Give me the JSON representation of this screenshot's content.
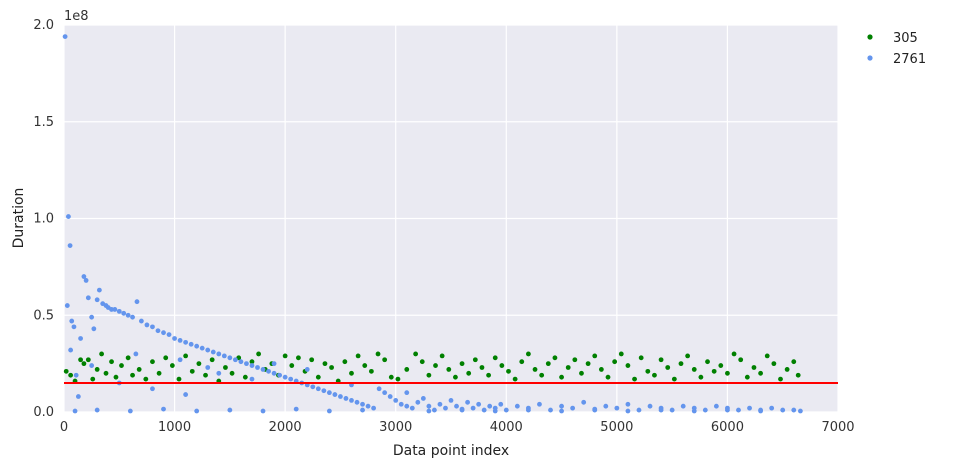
{
  "chart_data": {
    "type": "scatter",
    "xlabel": "Data point index",
    "ylabel": "Duration",
    "offset_label": "1e8",
    "xlim": [
      0,
      7000
    ],
    "ylim": [
      0,
      200000000
    ],
    "x_ticks": [
      0,
      1000,
      2000,
      3000,
      4000,
      5000,
      6000,
      7000
    ],
    "x_tick_labels": [
      "0",
      "1000",
      "2000",
      "3000",
      "4000",
      "5000",
      "6000",
      "7000"
    ],
    "y_ticks": [
      0,
      50000000,
      100000000,
      150000000,
      200000000
    ],
    "y_tick_labels": [
      "0.0",
      "0.5",
      "1.0",
      "1.5",
      "2.0"
    ],
    "grid": true,
    "legend_position": "outside-top-right",
    "threshold_line": {
      "y": 15000000,
      "color": "#ff0000"
    },
    "series": [
      {
        "name": "305",
        "color": "#008000",
        "points": [
          [
            20,
            21000000
          ],
          [
            60,
            19000000
          ],
          [
            100,
            16000000
          ],
          [
            150,
            27000000
          ],
          [
            180,
            25000000
          ],
          [
            220,
            27000000
          ],
          [
            260,
            17000000
          ],
          [
            300,
            22000000
          ],
          [
            340,
            30000000
          ],
          [
            380,
            20000000
          ],
          [
            430,
            26000000
          ],
          [
            470,
            18000000
          ],
          [
            520,
            24000000
          ],
          [
            580,
            28000000
          ],
          [
            620,
            19000000
          ],
          [
            680,
            22000000
          ],
          [
            740,
            17000000
          ],
          [
            800,
            26000000
          ],
          [
            860,
            20000000
          ],
          [
            920,
            28000000
          ],
          [
            980,
            24000000
          ],
          [
            1040,
            17000000
          ],
          [
            1100,
            29000000
          ],
          [
            1160,
            21000000
          ],
          [
            1220,
            25000000
          ],
          [
            1280,
            19000000
          ],
          [
            1340,
            27000000
          ],
          [
            1400,
            16000000
          ],
          [
            1460,
            23000000
          ],
          [
            1520,
            20000000
          ],
          [
            1580,
            28000000
          ],
          [
            1640,
            18000000
          ],
          [
            1700,
            26000000
          ],
          [
            1760,
            30000000
          ],
          [
            1820,
            22000000
          ],
          [
            1880,
            25000000
          ],
          [
            1940,
            19000000
          ],
          [
            2000,
            29000000
          ],
          [
            2060,
            24000000
          ],
          [
            2120,
            28000000
          ],
          [
            2180,
            21000000
          ],
          [
            2240,
            27000000
          ],
          [
            2300,
            18000000
          ],
          [
            2360,
            25000000
          ],
          [
            2420,
            23000000
          ],
          [
            2480,
            16000000
          ],
          [
            2540,
            26000000
          ],
          [
            2600,
            20000000
          ],
          [
            2660,
            29000000
          ],
          [
            2720,
            24000000
          ],
          [
            2780,
            21000000
          ],
          [
            2840,
            30000000
          ],
          [
            2900,
            27000000
          ],
          [
            2960,
            18000000
          ],
          [
            3020,
            17000000
          ],
          [
            3100,
            22000000
          ],
          [
            3180,
            30000000
          ],
          [
            3240,
            26000000
          ],
          [
            3300,
            19000000
          ],
          [
            3360,
            24000000
          ],
          [
            3420,
            29000000
          ],
          [
            3480,
            22000000
          ],
          [
            3540,
            18000000
          ],
          [
            3600,
            25000000
          ],
          [
            3660,
            20000000
          ],
          [
            3720,
            27000000
          ],
          [
            3780,
            23000000
          ],
          [
            3840,
            19000000
          ],
          [
            3900,
            28000000
          ],
          [
            3960,
            24000000
          ],
          [
            4020,
            21000000
          ],
          [
            4080,
            17000000
          ],
          [
            4140,
            26000000
          ],
          [
            4200,
            30000000
          ],
          [
            4260,
            22000000
          ],
          [
            4320,
            19000000
          ],
          [
            4380,
            25000000
          ],
          [
            4440,
            28000000
          ],
          [
            4500,
            18000000
          ],
          [
            4560,
            23000000
          ],
          [
            4620,
            27000000
          ],
          [
            4680,
            20000000
          ],
          [
            4740,
            25000000
          ],
          [
            4800,
            29000000
          ],
          [
            4860,
            22000000
          ],
          [
            4920,
            18000000
          ],
          [
            4980,
            26000000
          ],
          [
            5040,
            30000000
          ],
          [
            5100,
            24000000
          ],
          [
            5160,
            17000000
          ],
          [
            5220,
            28000000
          ],
          [
            5280,
            21000000
          ],
          [
            5340,
            19000000
          ],
          [
            5400,
            27000000
          ],
          [
            5460,
            23000000
          ],
          [
            5520,
            17000000
          ],
          [
            5580,
            25000000
          ],
          [
            5640,
            29000000
          ],
          [
            5700,
            22000000
          ],
          [
            5760,
            18000000
          ],
          [
            5820,
            26000000
          ],
          [
            5880,
            21000000
          ],
          [
            5940,
            24000000
          ],
          [
            6000,
            20000000
          ],
          [
            6060,
            30000000
          ],
          [
            6120,
            27000000
          ],
          [
            6180,
            18000000
          ],
          [
            6240,
            23000000
          ],
          [
            6300,
            20000000
          ],
          [
            6360,
            29000000
          ],
          [
            6420,
            25000000
          ],
          [
            6480,
            17000000
          ],
          [
            6540,
            22000000
          ],
          [
            6600,
            26000000
          ],
          [
            6640,
            19000000
          ]
        ]
      },
      {
        "name": "2761",
        "color": "#6495ed",
        "points": [
          [
            10,
            194000000
          ],
          [
            30,
            55000000
          ],
          [
            40,
            101000000
          ],
          [
            55,
            86000000
          ],
          [
            60,
            32000000
          ],
          [
            70,
            47000000
          ],
          [
            90,
            44000000
          ],
          [
            110,
            19000000
          ],
          [
            130,
            8000000
          ],
          [
            150,
            38000000
          ],
          [
            180,
            70000000
          ],
          [
            200,
            68000000
          ],
          [
            220,
            59000000
          ],
          [
            250,
            49000000
          ],
          [
            270,
            43000000
          ],
          [
            300,
            58000000
          ],
          [
            320,
            63000000
          ],
          [
            350,
            56000000
          ],
          [
            380,
            55000000
          ],
          [
            400,
            54000000
          ],
          [
            430,
            53000000
          ],
          [
            460,
            53000000
          ],
          [
            500,
            52000000
          ],
          [
            540,
            51000000
          ],
          [
            580,
            50000000
          ],
          [
            620,
            49000000
          ],
          [
            660,
            57000000
          ],
          [
            700,
            47000000
          ],
          [
            750,
            45000000
          ],
          [
            800,
            44000000
          ],
          [
            850,
            42000000
          ],
          [
            900,
            41000000
          ],
          [
            950,
            40000000
          ],
          [
            1000,
            38000000
          ],
          [
            1050,
            37000000
          ],
          [
            1100,
            36000000
          ],
          [
            1150,
            35000000
          ],
          [
            1200,
            34000000
          ],
          [
            1250,
            33000000
          ],
          [
            1300,
            32000000
          ],
          [
            1350,
            31000000
          ],
          [
            1400,
            30000000
          ],
          [
            1450,
            29000000
          ],
          [
            1500,
            28000000
          ],
          [
            1550,
            27000000
          ],
          [
            1600,
            26000000
          ],
          [
            1650,
            25000000
          ],
          [
            1700,
            24000000
          ],
          [
            1750,
            23000000
          ],
          [
            1800,
            22000000
          ],
          [
            1850,
            21000000
          ],
          [
            1900,
            20000000
          ],
          [
            1950,
            19000000
          ],
          [
            2000,
            18000000
          ],
          [
            2050,
            17000000
          ],
          [
            2100,
            16000000
          ],
          [
            2150,
            15000000
          ],
          [
            2200,
            14000000
          ],
          [
            2250,
            13000000
          ],
          [
            2300,
            12000000
          ],
          [
            2350,
            11000000
          ],
          [
            2400,
            10000000
          ],
          [
            2450,
            9000000
          ],
          [
            2500,
            8000000
          ],
          [
            2550,
            7000000
          ],
          [
            2600,
            6000000
          ],
          [
            2650,
            5000000
          ],
          [
            2700,
            4000000
          ],
          [
            2750,
            3000000
          ],
          [
            2800,
            2000000
          ],
          [
            2850,
            12000000
          ],
          [
            2900,
            10000000
          ],
          [
            2950,
            8000000
          ],
          [
            3000,
            6000000
          ],
          [
            3050,
            4000000
          ],
          [
            3100,
            3000000
          ],
          [
            3150,
            2000000
          ],
          [
            3200,
            5000000
          ],
          [
            3250,
            7000000
          ],
          [
            3300,
            3000000
          ],
          [
            3350,
            1000000
          ],
          [
            3400,
            4000000
          ],
          [
            3450,
            2000000
          ],
          [
            3500,
            6000000
          ],
          [
            3550,
            3000000
          ],
          [
            3600,
            1000000
          ],
          [
            3650,
            5000000
          ],
          [
            3700,
            2000000
          ],
          [
            3750,
            4000000
          ],
          [
            3800,
            1000000
          ],
          [
            3850,
            3000000
          ],
          [
            3900,
            2000000
          ],
          [
            3950,
            4000000
          ],
          [
            4000,
            1000000
          ],
          [
            4100,
            3000000
          ],
          [
            4200,
            2000000
          ],
          [
            4300,
            4000000
          ],
          [
            4400,
            1000000
          ],
          [
            4500,
            3000000
          ],
          [
            4600,
            2000000
          ],
          [
            4700,
            5000000
          ],
          [
            4800,
            1000000
          ],
          [
            4900,
            3000000
          ],
          [
            5000,
            2000000
          ],
          [
            5100,
            4000000
          ],
          [
            5200,
            1000000
          ],
          [
            5300,
            3000000
          ],
          [
            5400,
            2000000
          ],
          [
            5500,
            1000000
          ],
          [
            5600,
            3000000
          ],
          [
            5700,
            2000000
          ],
          [
            5800,
            1000000
          ],
          [
            5900,
            3000000
          ],
          [
            6000,
            2000000
          ],
          [
            6100,
            1000000
          ],
          [
            6200,
            2000000
          ],
          [
            6300,
            1000000
          ],
          [
            6400,
            2000000
          ],
          [
            6500,
            1000000
          ],
          [
            6600,
            1000000
          ],
          [
            100,
            500000
          ],
          [
            300,
            1000000
          ],
          [
            600,
            500000
          ],
          [
            900,
            1500000
          ],
          [
            1200,
            500000
          ],
          [
            1500,
            1000000
          ],
          [
            1800,
            500000
          ],
          [
            2100,
            1500000
          ],
          [
            2400,
            500000
          ],
          [
            2700,
            1000000
          ],
          [
            3300,
            500000
          ],
          [
            3600,
            1500000
          ],
          [
            3900,
            500000
          ],
          [
            4200,
            1000000
          ],
          [
            4500,
            500000
          ],
          [
            4800,
            1500000
          ],
          [
            5100,
            500000
          ],
          [
            5400,
            1000000
          ],
          [
            5700,
            500000
          ],
          [
            6000,
            1000000
          ],
          [
            6300,
            500000
          ],
          [
            6660,
            500000
          ],
          [
            500,
            15000000
          ],
          [
            800,
            12000000
          ],
          [
            1100,
            9000000
          ],
          [
            1400,
            20000000
          ],
          [
            1700,
            17000000
          ],
          [
            2200,
            22000000
          ],
          [
            2600,
            14000000
          ],
          [
            3100,
            10000000
          ],
          [
            250,
            24000000
          ],
          [
            650,
            30000000
          ],
          [
            1050,
            27000000
          ],
          [
            1300,
            23000000
          ],
          [
            1900,
            25000000
          ]
        ]
      }
    ]
  }
}
